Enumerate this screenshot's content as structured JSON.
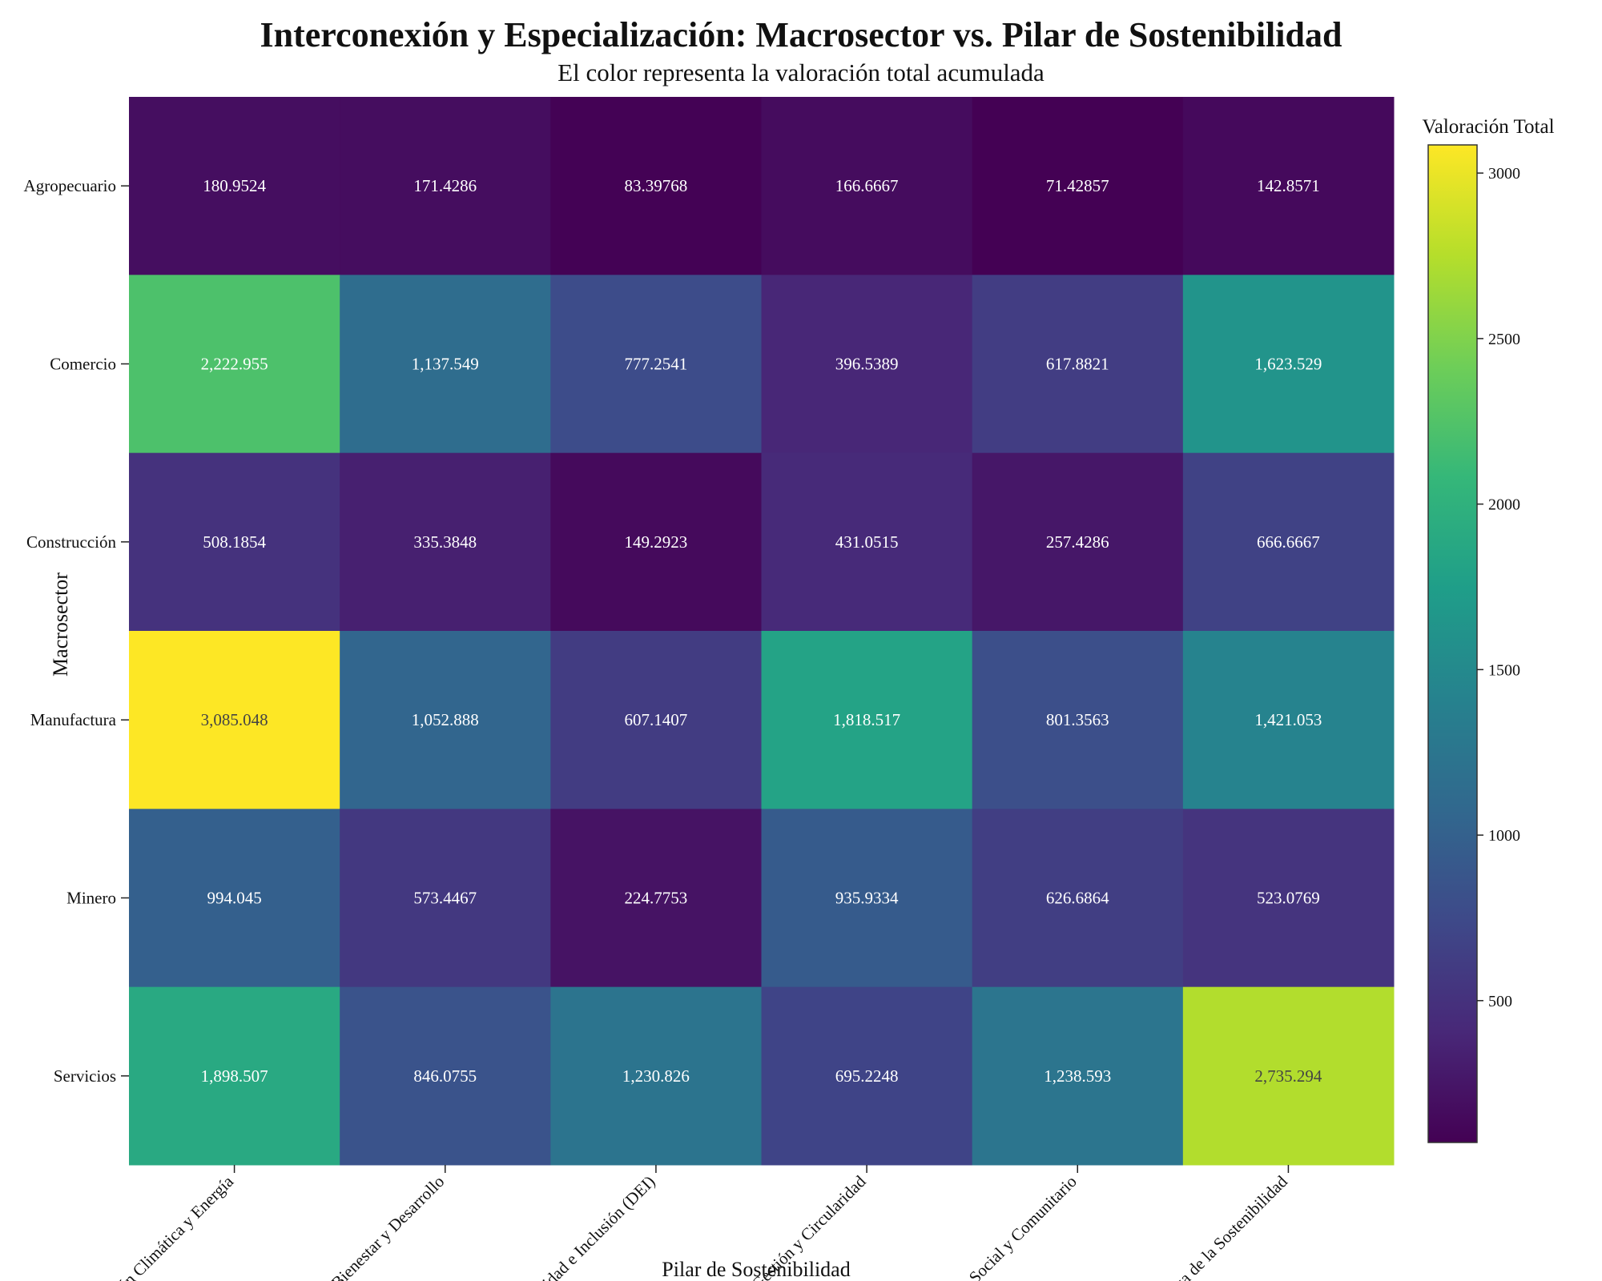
{
  "chart_data": {
    "type": "heatmap",
    "title": "Interconexión y Especialización: Macrosector vs. Pilar de Sostenibilidad",
    "subtitle": "El color representa la valoración total acumulada",
    "xlabel": "Pilar de Sostenibilidad",
    "ylabel": "Macrosector",
    "colorbar_title": "Valoración Total",
    "colormap": "viridis",
    "vmin": 71.42857,
    "vmax": 3085.048,
    "colorbar_ticks": [
      500,
      1000,
      1500,
      2000,
      2500,
      3000
    ],
    "x_categories": [
      "Acción Climática y Energía",
      "Bienestar y Desarrollo",
      "Diversidad e Inclusión (DEI)",
      "Gestión y Circularidad",
      "Impacto Social y Comunitario",
      "Gobernanza de la Sostenibilidad"
    ],
    "y_categories": [
      "Agropecuario",
      "Comercio",
      "Construcción",
      "Manufactura",
      "Minero",
      "Servicios"
    ],
    "values": [
      [
        180.9524,
        171.4286,
        83.39768,
        166.6667,
        71.42857,
        142.8571
      ],
      [
        2222.955,
        1137.549,
        777.2541,
        396.5389,
        617.8821,
        1623.529
      ],
      [
        508.1854,
        335.3848,
        149.2923,
        431.0515,
        257.4286,
        666.6667
      ],
      [
        3085.048,
        1052.888,
        607.1407,
        1818.517,
        801.3563,
        1421.053
      ],
      [
        994.045,
        573.4467,
        224.7753,
        935.9334,
        626.6864,
        523.0769
      ],
      [
        1898.507,
        846.0755,
        1230.826,
        695.2248,
        1238.593,
        2735.294
      ]
    ],
    "cell_labels": [
      [
        "180.9524",
        "171.4286",
        "83.39768",
        "166.6667",
        "71.42857",
        "142.8571"
      ],
      [
        "2,222.955",
        "1,137.549",
        "777.2541",
        "396.5389",
        "617.8821",
        "1,623.529"
      ],
      [
        "508.1854",
        "335.3848",
        "149.2923",
        "431.0515",
        "257.4286",
        "666.6667"
      ],
      [
        "3,085.048",
        "1,052.888",
        "607.1407",
        "1,818.517",
        "801.3563",
        "1,421.053"
      ],
      [
        "994.045",
        "573.4467",
        "224.7753",
        "935.9334",
        "626.6864",
        "523.0769"
      ],
      [
        "1,898.507",
        "846.0755",
        "1,230.826",
        "695.2248",
        "1,238.593",
        "2,735.294"
      ]
    ]
  }
}
